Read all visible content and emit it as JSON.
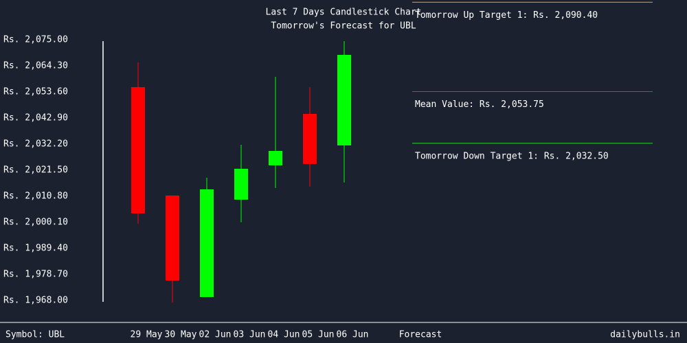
{
  "chart_data": {
    "type": "candlestick",
    "title": "Last 7 Days Candlestick Chart",
    "subtitle": "Tomorrow's Forecast for UBL",
    "categories": [
      "29 May",
      "30 May",
      "02 Jun",
      "03 Jun",
      "04 Jun",
      "05 Jun",
      "06 Jun"
    ],
    "open": [
      2055.57,
      2011.08,
      1969.41,
      2009.39,
      2023.47,
      2044.59,
      2031.64
    ],
    "high": [
      2065.71,
      2011.08,
      2018.4,
      2031.92,
      2059.8,
      2055.57,
      2074.44
    ],
    "low": [
      1999.54,
      1967.15,
      1969.41,
      2000.1,
      2014.18,
      2014.74,
      2016.43
    ],
    "close": [
      2003.76,
      1976.17,
      2013.62,
      2022.06,
      2029.38,
      2024.03,
      2068.81
    ],
    "up_color": "#00ff00",
    "down_color": "#ff0000",
    "ylim": [
      1968,
      2075
    ],
    "yticks": [
      {
        "value": 2075,
        "label": "Rs. 2,075.00"
      },
      {
        "value": 2064.3,
        "label": "Rs. 2,064.30"
      },
      {
        "value": 2053.6,
        "label": "Rs. 2,053.60"
      },
      {
        "value": 2042.9,
        "label": "Rs. 2,042.90"
      },
      {
        "value": 2032.2,
        "label": "Rs. 2,032.20"
      },
      {
        "value": 2021.5,
        "label": "Rs. 2,021.50"
      },
      {
        "value": 2010.8,
        "label": "Rs. 2,010.80"
      },
      {
        "value": 2000.1,
        "label": "Rs. 2,000.10"
      },
      {
        "value": 1989.4,
        "label": "Rs. 1,989.40"
      },
      {
        "value": 1978.7,
        "label": "Rs. 1,978.70"
      },
      {
        "value": 1968,
        "label": "Rs. 1,968.00"
      }
    ],
    "forecast_label": "Forecast",
    "forecasts": [
      {
        "label": "Tomorrow Up Target 1: Rs. 2,090.40",
        "value": 2090.4,
        "color": "#ff9933"
      },
      {
        "label": "Mean Value: Rs. 2,053.75",
        "value": 2053.75,
        "color": "#ff2222"
      },
      {
        "label": "Tomorrow Down Target 1: Rs. 2,032.50",
        "value": 2032.5,
        "color": "#22dd22"
      }
    ]
  },
  "footer": {
    "symbol": "Symbol: UBL",
    "site": "dailybulls.in"
  }
}
